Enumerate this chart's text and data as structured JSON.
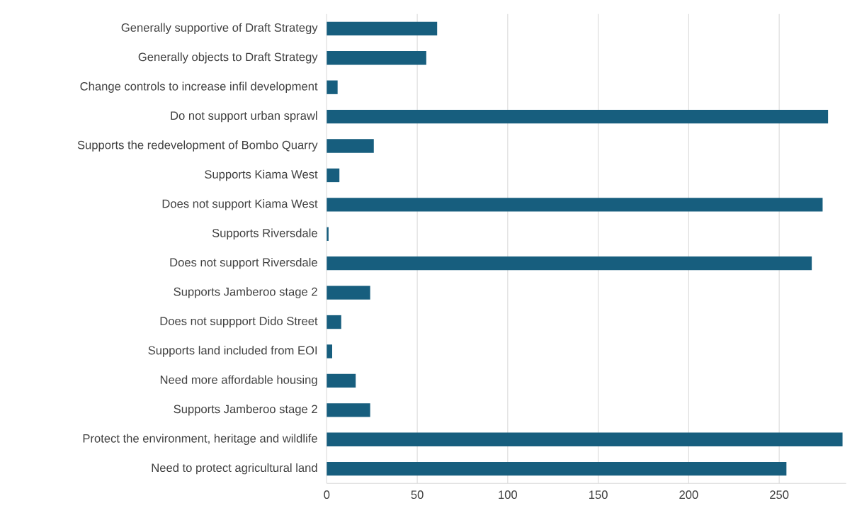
{
  "chart_data": {
    "type": "bar",
    "orientation": "horizontal",
    "categories": [
      "Generally supportive of Draft Strategy",
      "Generally objects to Draft Strategy",
      "Change controls to increase infil development",
      "Do not support urban sprawl",
      "Supports the redevelopment of Bombo Quarry",
      "Supports Kiama West",
      "Does not support Kiama West",
      "Supports Riversdale",
      "Does not support Riversdale",
      "Supports Jamberoo stage 2",
      "Does not suppport Dido Street",
      "Supports land included from EOI",
      "Need more affordable housing",
      "Supports Jamberoo stage 2",
      "Protect the environment, heritage and wildlife",
      "Need to protect agricultural land"
    ],
    "values": [
      61,
      55,
      6,
      277,
      26,
      7,
      274,
      1,
      268,
      24,
      8,
      3,
      16,
      24,
      285,
      254
    ],
    "color": "#175e7e",
    "xlim": [
      0,
      287
    ],
    "xticks": [
      0,
      50,
      100,
      150,
      200,
      250
    ],
    "grid": "x"
  }
}
